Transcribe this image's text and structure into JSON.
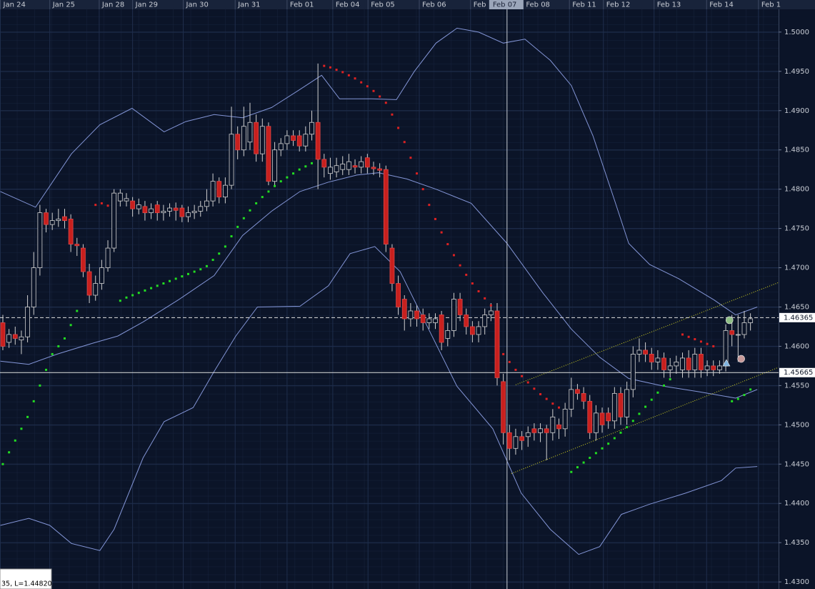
{
  "chart_data": {
    "type": "candlestick",
    "open": [
      1.463,
      1.4605,
      1.4615,
      1.4608,
      1.4612,
      1.465,
      1.47,
      1.477,
      1.4755,
      1.476,
      1.4765,
      1.4762,
      1.473,
      1.4725,
      1.4695,
      1.4665,
      1.468,
      1.47,
      1.4725,
      1.4785,
      1.4785,
      1.4785,
      1.4775,
      1.4778,
      1.477,
      1.478,
      1.477,
      1.4772,
      1.4776,
      1.4776,
      1.4765,
      1.477,
      1.4772,
      1.4778,
      1.4785,
      1.481,
      1.479,
      1.4805,
      1.487,
      1.485,
      1.486,
      1.4885,
      1.4845,
      1.488,
      1.481,
      1.485,
      1.4858,
      1.4868,
      1.4868,
      1.4855,
      1.487,
      1.4885,
      1.4838,
      1.482,
      1.4822,
      1.4825,
      1.4825,
      1.483,
      1.4828,
      1.484,
      1.4828,
      1.4826,
      1.4825,
      1.4725,
      1.468,
      1.466,
      1.4635,
      1.4645,
      1.464,
      1.463,
      1.463,
      1.464,
      1.461,
      1.462,
      1.466,
      1.464,
      1.4625,
      1.4615,
      1.4625,
      1.464,
      1.4645,
      1.4555,
      1.449,
      1.447,
      1.4485,
      1.4485,
      1.4495,
      1.449,
      1.4495,
      1.449,
      1.45,
      1.4495,
      1.452,
      1.4545,
      1.454,
      1.453,
      1.449,
      1.4515,
      1.4515,
      1.4505,
      1.454,
      1.451,
      1.4545,
      1.459,
      1.4595,
      1.459,
      1.458,
      1.4585,
      1.457,
      1.4575,
      1.457,
      1.4585,
      1.457,
      1.459,
      1.457,
      1.4575,
      1.457,
      1.4575,
      1.462,
      1.4615,
      1.4615,
      1.463
    ],
    "high": [
      1.464,
      1.4622,
      1.4625,
      1.462,
      1.4665,
      1.472,
      1.478,
      1.4775,
      1.477,
      1.4775,
      1.4775,
      1.4768,
      1.4738,
      1.473,
      1.4705,
      1.469,
      1.471,
      1.4735,
      1.48,
      1.48,
      1.4795,
      1.479,
      1.4788,
      1.4785,
      1.4782,
      1.4785,
      1.478,
      1.4782,
      1.4783,
      1.478,
      1.4778,
      1.478,
      1.4785,
      1.48,
      1.482,
      1.4815,
      1.4815,
      1.4905,
      1.488,
      1.4905,
      1.491,
      1.4895,
      1.489,
      1.4885,
      1.486,
      1.4865,
      1.4875,
      1.4875,
      1.4875,
      1.488,
      1.49,
      1.496,
      1.4845,
      1.484,
      1.484,
      1.4842,
      1.4845,
      1.4838,
      1.4842,
      1.4845,
      1.4835,
      1.4833,
      1.483,
      1.473,
      1.469,
      1.4665,
      1.4655,
      1.4652,
      1.4648,
      1.4642,
      1.4642,
      1.4645,
      1.463,
      1.4668,
      1.4668,
      1.4648,
      1.4632,
      1.4632,
      1.4648,
      1.4655,
      1.4655,
      1.4565,
      1.45,
      1.4495,
      1.4492,
      1.4498,
      1.4502,
      1.4502,
      1.45,
      1.452,
      1.4508,
      1.4528,
      1.456,
      1.4552,
      1.4548,
      1.4538,
      1.4525,
      1.4522,
      1.4522,
      1.4548,
      1.4548,
      1.4555,
      1.46,
      1.461,
      1.4605,
      1.4598,
      1.4595,
      1.4592,
      1.4585,
      1.4588,
      1.4592,
      1.4595,
      1.4598,
      1.4598,
      1.4582,
      1.4582,
      1.4582,
      1.4628,
      1.464,
      1.464,
      1.4645,
      1.4642
    ],
    "low": [
      1.4595,
      1.4598,
      1.4602,
      1.459,
      1.4605,
      1.464,
      1.469,
      1.4745,
      1.4748,
      1.4752,
      1.475,
      1.472,
      1.4715,
      1.4688,
      1.4655,
      1.4658,
      1.4672,
      1.4695,
      1.472,
      1.4778,
      1.4778,
      1.4765,
      1.4768,
      1.476,
      1.4762,
      1.476,
      1.476,
      1.4765,
      1.476,
      1.4758,
      1.4758,
      1.4762,
      1.4765,
      1.4772,
      1.4778,
      1.4782,
      1.4782,
      1.48,
      1.4838,
      1.4842,
      1.485,
      1.4835,
      1.4835,
      1.4805,
      1.4805,
      1.4842,
      1.485,
      1.4855,
      1.4848,
      1.4848,
      1.4862,
      1.48,
      1.4815,
      1.4812,
      1.4815,
      1.4818,
      1.4818,
      1.482,
      1.482,
      1.482,
      1.4818,
      1.4815,
      1.472,
      1.467,
      1.464,
      1.462,
      1.4625,
      1.4625,
      1.462,
      1.4622,
      1.4622,
      1.4595,
      1.46,
      1.4612,
      1.4632,
      1.4615,
      1.4605,
      1.4605,
      1.4615,
      1.4632,
      1.455,
      1.4475,
      1.4455,
      1.4462,
      1.4468,
      1.4472,
      1.448,
      1.4478,
      1.4455,
      1.448,
      1.4482,
      1.4485,
      1.451,
      1.4532,
      1.452,
      1.4482,
      1.448,
      1.449,
      1.4495,
      1.4495,
      1.45,
      1.45,
      1.4535,
      1.458,
      1.458,
      1.457,
      1.457,
      1.456,
      1.456,
      1.4565,
      1.456,
      1.456,
      1.456,
      1.456,
      1.4562,
      1.4562,
      1.4565,
      1.4568,
      1.46,
      1.458,
      1.461,
      1.462
    ],
    "close": [
      1.46,
      1.4615,
      1.461,
      1.4612,
      1.465,
      1.47,
      1.477,
      1.4755,
      1.476,
      1.4762,
      1.476,
      1.473,
      1.4728,
      1.4695,
      1.4665,
      1.468,
      1.47,
      1.4725,
      1.4795,
      1.4795,
      1.4788,
      1.4775,
      1.478,
      1.477,
      1.4775,
      1.477,
      1.4772,
      1.4776,
      1.4773,
      1.4765,
      1.477,
      1.4772,
      1.4778,
      1.4785,
      1.481,
      1.479,
      1.4805,
      1.487,
      1.485,
      1.488,
      1.4885,
      1.4845,
      1.488,
      1.481,
      1.485,
      1.4858,
      1.4868,
      1.4862,
      1.4855,
      1.487,
      1.4885,
      1.4838,
      1.4828,
      1.4828,
      1.483,
      1.4832,
      1.4835,
      1.4828,
      1.4835,
      1.4828,
      1.4826,
      1.4824,
      1.473,
      1.468,
      1.465,
      1.4635,
      1.4645,
      1.4635,
      1.463,
      1.4635,
      1.4635,
      1.4605,
      1.462,
      1.466,
      1.464,
      1.4625,
      1.4615,
      1.4625,
      1.464,
      1.4645,
      1.456,
      1.449,
      1.447,
      1.4485,
      1.448,
      1.449,
      1.449,
      1.4495,
      1.449,
      1.451,
      1.4495,
      1.452,
      1.4545,
      1.454,
      1.453,
      1.449,
      1.4515,
      1.45,
      1.4505,
      1.454,
      1.451,
      1.4545,
      1.459,
      1.4595,
      1.459,
      1.458,
      1.4585,
      1.457,
      1.4575,
      1.458,
      1.4585,
      1.457,
      1.459,
      1.457,
      1.4575,
      1.457,
      1.4575,
      1.462,
      1.4615,
      1.4615,
      1.463,
      1.4635
    ],
    "sar": [
      1.445,
      1.4465,
      1.448,
      1.4495,
      1.451,
      1.453,
      1.455,
      1.457,
      1.459,
      1.46,
      1.461,
      1.4627,
      1.4645,
      null,
      null,
      1.478,
      1.4782,
      1.4779,
      null,
      1.4658,
      1.4662,
      1.4665,
      1.4668,
      1.4671,
      1.4674,
      1.4677,
      1.468,
      1.4683,
      1.4686,
      1.4689,
      1.4692,
      1.4695,
      1.4698,
      1.4702,
      1.471,
      1.4718,
      1.4727,
      1.474,
      1.4752,
      1.4763,
      1.4773,
      1.4782,
      1.479,
      1.4797,
      1.4804,
      1.481,
      1.4815,
      1.482,
      1.4825,
      1.4829,
      1.4833,
      null,
      1.4957,
      1.4955,
      1.4952,
      1.4949,
      1.4945,
      1.4941,
      1.4936,
      1.4931,
      1.4925,
      1.4918,
      1.491,
      1.4895,
      1.4878,
      1.486,
      1.484,
      1.482,
      1.48,
      1.478,
      1.4762,
      1.4745,
      1.473,
      1.4716,
      1.4703,
      1.4691,
      1.468,
      1.467,
      1.4661,
      1.4652,
      null,
      1.459,
      1.458,
      1.457,
      1.4562,
      1.4554,
      1.4546,
      1.4539,
      1.4533,
      1.4527,
      1.4522,
      null,
      1.444,
      1.4446,
      1.4452,
      1.4458,
      1.4464,
      1.447,
      1.4476,
      1.4483,
      1.449,
      1.4497,
      1.4505,
      1.4514,
      1.4523,
      1.4532,
      1.4541,
      1.455,
      1.4558,
      null,
      1.4615,
      1.4612,
      1.4609,
      1.4606,
      1.4603,
      1.46,
      null,
      null,
      1.453,
      1.4533,
      1.4538,
      1.4545
    ],
    "bands": [
      {
        "x": [
          -0.4,
          5.3,
          11.1,
          15.7,
          20.9,
          26.1,
          29.6,
          34.2,
          38.8,
          43.5,
          48.1,
          51.6,
          54.5,
          59.7,
          63.7,
          66.6,
          70.1,
          73.5,
          77.0,
          81.0,
          84.5,
          88.6,
          92.0,
          95.5,
          99.0,
          101.3,
          104.7,
          109.4,
          115.1,
          118.6,
          122.1
        ],
        "values": [
          1.4797,
          1.4777,
          1.4845,
          1.4882,
          1.4903,
          1.4873,
          1.4886,
          1.4895,
          1.4891,
          1.4904,
          1.4927,
          1.4945,
          1.4915,
          1.4915,
          1.4914,
          1.495,
          1.4986,
          1.5005,
          1.5,
          1.4986,
          1.4991,
          1.4964,
          1.4932,
          1.4868,
          1.4786,
          1.4731,
          1.4704,
          1.4686,
          1.4659,
          1.464,
          1.465
        ]
      },
      {
        "x": [
          -0.4,
          4.2,
          8.8,
          14.6,
          18.6,
          22.7,
          28.4,
          34.2,
          38.8,
          43.5,
          48.1,
          52.7,
          57.3,
          60.8,
          65.4,
          70.1,
          75.8,
          81.6,
          87.4,
          92.0,
          96.6,
          101.3,
          107.1,
          112.8,
          118.6,
          122.1
        ],
        "values": [
          1.4581,
          1.4577,
          1.459,
          1.4604,
          1.4613,
          1.4631,
          1.4659,
          1.469,
          1.4741,
          1.4772,
          1.4797,
          1.4809,
          1.4818,
          1.4821,
          1.4813,
          1.48,
          1.4782,
          1.4731,
          1.4668,
          1.4622,
          1.4586,
          1.4559,
          1.4549,
          1.4542,
          1.4534,
          1.4545
        ]
      },
      {
        "x": [
          -0.4,
          4.2,
          7.6,
          11.1,
          15.7,
          18.0,
          22.7,
          26.1,
          30.8,
          34.2,
          37.7,
          41.2,
          48.1,
          52.7,
          56.2,
          60.2,
          64.3,
          68.9,
          73.5,
          79.3,
          83.9,
          88.6,
          93.2,
          96.6,
          100.1,
          104.7,
          110.5,
          116.3,
          118.6,
          122.1
        ],
        "values": [
          1.4372,
          1.4381,
          1.4372,
          1.4349,
          1.434,
          1.4367,
          1.4458,
          1.4504,
          1.4522,
          1.4568,
          1.4613,
          1.465,
          1.4651,
          1.4677,
          1.4718,
          1.4727,
          1.4695,
          1.4622,
          1.4549,
          1.4495,
          1.4413,
          1.4367,
          1.4335,
          1.4345,
          1.4386,
          1.4399,
          1.4413,
          1.4429,
          1.4445,
          1.4447
        ]
      }
    ],
    "channels": [
      {
        "x": [
          83.0,
          125.5
        ],
        "y": [
          1.4551,
          1.4681
        ]
      },
      {
        "x": [
          82.3,
          125.5
        ],
        "y": [
          1.4438,
          1.4573
        ]
      }
    ],
    "price_lines": [
      {
        "value": 1.46365,
        "style": "dashed"
      },
      {
        "value": 1.45665,
        "style": "solid"
      }
    ],
    "crosshair": {
      "x": 81.6,
      "label": "Feb 07"
    },
    "signals": [
      {
        "shape": "circle",
        "color": "#8fbf86",
        "x": 117.6,
        "y": 1.46332
      },
      {
        "shape": "triangle",
        "color": "#7fb3e0",
        "x": 117.1,
        "y": 1.45785
      },
      {
        "shape": "circle",
        "color": "#c79a9a",
        "x": 119.5,
        "y": 1.4584
      }
    ],
    "status_text": "35, L=1.44820",
    "xlim": [
      -0.46,
      125.55
    ],
    "ylim": [
      1.4291,
      1.5029
    ],
    "xticks": [
      {
        "value": -0.4,
        "label": "Jan 24"
      },
      {
        "value": 7.6,
        "label": "Jan 25"
      },
      {
        "value": 15.6,
        "label": "Jan 28"
      },
      {
        "value": 21.0,
        "label": "Jan 29"
      },
      {
        "value": 29.2,
        "label": "Jan 30"
      },
      {
        "value": 37.6,
        "label": "Jan 31"
      },
      {
        "value": 46.0,
        "label": "Feb 01"
      },
      {
        "value": 53.4,
        "label": "Feb 04"
      },
      {
        "value": 59.1,
        "label": "Feb 05"
      },
      {
        "value": 67.4,
        "label": "Feb 06"
      },
      {
        "value": 75.7,
        "label": "Feb"
      },
      {
        "value": 84.2,
        "label": "Feb 08"
      },
      {
        "value": 91.7,
        "label": "Feb 11"
      },
      {
        "value": 97.2,
        "label": "Feb 12"
      },
      {
        "value": 105.4,
        "label": "Feb 13"
      },
      {
        "value": 113.9,
        "label": "Feb 14"
      },
      {
        "value": 122.3,
        "label": "Feb 1"
      }
    ],
    "yticks": [
      {
        "value": 1.5,
        "label": "1.5000"
      },
      {
        "value": 1.495,
        "label": "1.4950"
      },
      {
        "value": 1.49,
        "label": "1.4900"
      },
      {
        "value": 1.485,
        "label": "1.4850"
      },
      {
        "value": 1.48,
        "label": "1.4800"
      },
      {
        "value": 1.475,
        "label": "1.4750"
      },
      {
        "value": 1.47,
        "label": "1.4700"
      },
      {
        "value": 1.465,
        "label": "1.4650"
      },
      {
        "value": 1.46,
        "label": "1.4600"
      },
      {
        "value": 1.455,
        "label": "1.4550"
      },
      {
        "value": 1.45,
        "label": "1.4500"
      },
      {
        "value": 1.445,
        "label": "1.4450"
      },
      {
        "value": 1.44,
        "label": "1.4400"
      },
      {
        "value": 1.435,
        "label": "1.4350"
      },
      {
        "value": 1.43,
        "label": "1.4300"
      }
    ],
    "grid": true,
    "colors": {
      "up": "#d0d0d0",
      "down": "#c8201e",
      "band": "#8395d6",
      "sar_up": "#22dd22",
      "sar_down": "#dd2222",
      "channel": "#d8d820",
      "price_line": "#e0e0e0"
    }
  }
}
